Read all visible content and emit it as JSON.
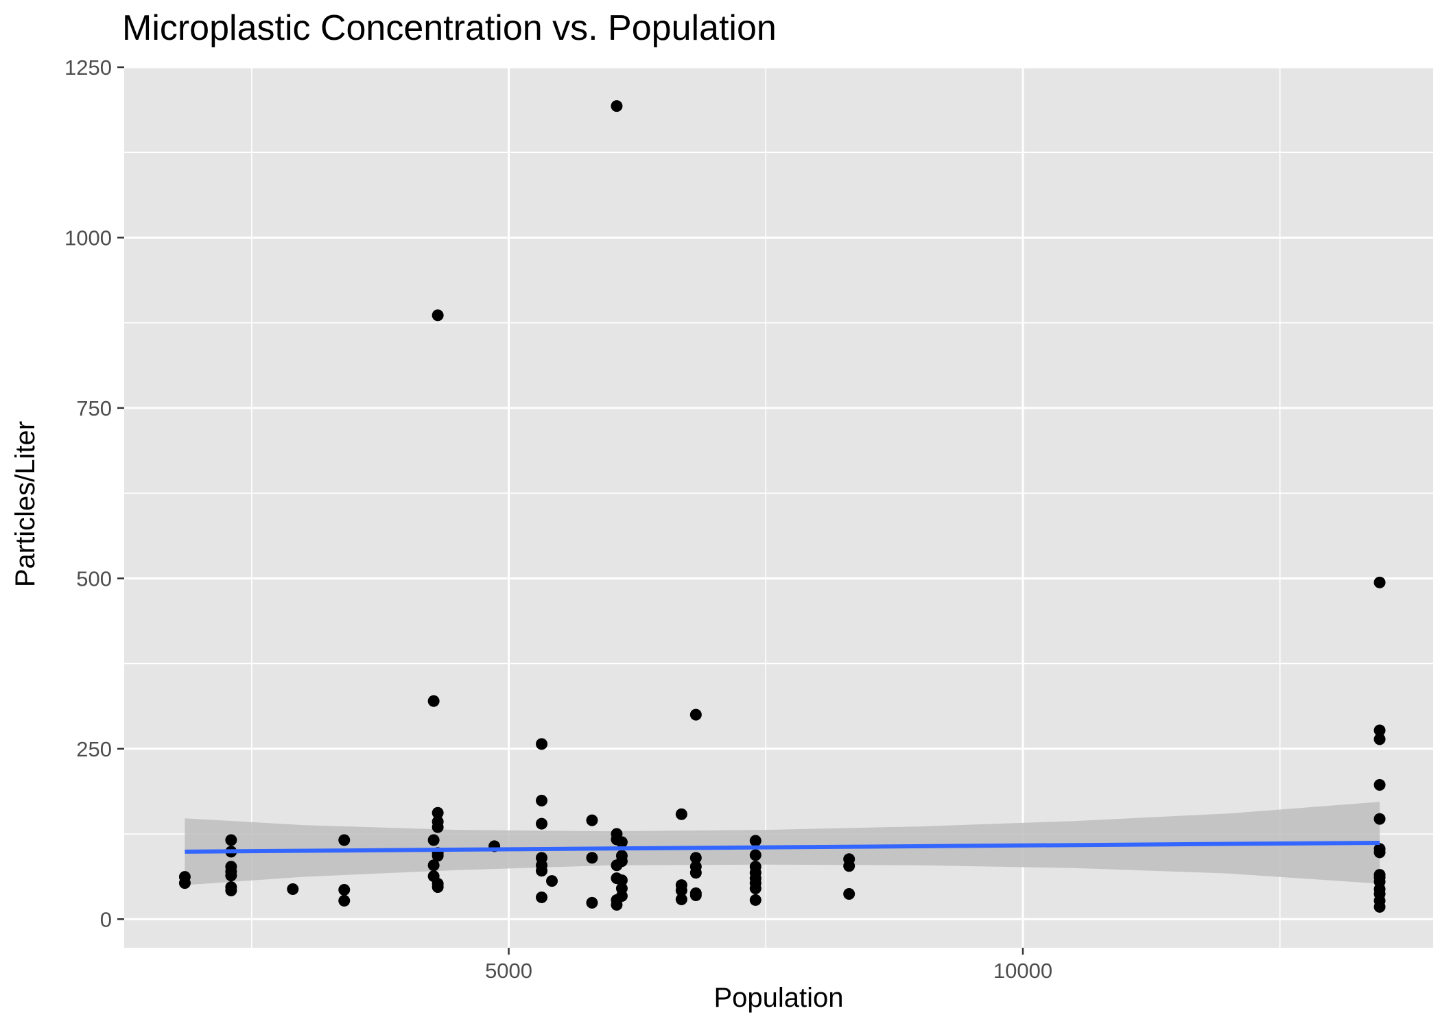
{
  "chart_data": {
    "type": "scatter",
    "title": "Microplastic Concentration vs. Population",
    "xlabel": "Population",
    "ylabel": "Particles/Liter",
    "xlim": [
      1260,
      13990
    ],
    "ylim": [
      -42,
      1250
    ],
    "x_ticks": [
      5000,
      10000
    ],
    "x_tick_labels": [
      "5000",
      "10000"
    ],
    "x_minor_ticks": [
      2500,
      7500,
      12500
    ],
    "y_ticks": [
      0,
      250,
      500,
      750,
      1000,
      1250
    ],
    "y_tick_labels": [
      "0",
      "250",
      "500",
      "750",
      "1000",
      "1250"
    ],
    "y_minor_ticks": [
      125,
      375,
      625,
      875,
      1125
    ],
    "grid": true,
    "background": "#e5e5e5",
    "point_color": "#000000",
    "trend_color": "#3366ff",
    "band_color": "#bebebe",
    "points": [
      {
        "x": 1850,
        "y": 62
      },
      {
        "x": 1850,
        "y": 53
      },
      {
        "x": 2300,
        "y": 116
      },
      {
        "x": 2300,
        "y": 99
      },
      {
        "x": 2300,
        "y": 77
      },
      {
        "x": 2300,
        "y": 70
      },
      {
        "x": 2300,
        "y": 64
      },
      {
        "x": 2300,
        "y": 47
      },
      {
        "x": 2300,
        "y": 42
      },
      {
        "x": 2900,
        "y": 44
      },
      {
        "x": 3400,
        "y": 116
      },
      {
        "x": 3400,
        "y": 43
      },
      {
        "x": 3400,
        "y": 27
      },
      {
        "x": 4270,
        "y": 320
      },
      {
        "x": 4270,
        "y": 116
      },
      {
        "x": 4270,
        "y": 79
      },
      {
        "x": 4270,
        "y": 63
      },
      {
        "x": 4310,
        "y": 886
      },
      {
        "x": 4310,
        "y": 156
      },
      {
        "x": 4310,
        "y": 143
      },
      {
        "x": 4310,
        "y": 135
      },
      {
        "x": 4310,
        "y": 97
      },
      {
        "x": 4310,
        "y": 93
      },
      {
        "x": 4310,
        "y": 52
      },
      {
        "x": 4310,
        "y": 47
      },
      {
        "x": 4860,
        "y": 107
      },
      {
        "x": 5320,
        "y": 257
      },
      {
        "x": 5320,
        "y": 174
      },
      {
        "x": 5320,
        "y": 140
      },
      {
        "x": 5320,
        "y": 90
      },
      {
        "x": 5320,
        "y": 79
      },
      {
        "x": 5320,
        "y": 71
      },
      {
        "x": 5320,
        "y": 32
      },
      {
        "x": 5420,
        "y": 56
      },
      {
        "x": 5810,
        "y": 145
      },
      {
        "x": 5810,
        "y": 90
      },
      {
        "x": 5810,
        "y": 24
      },
      {
        "x": 6050,
        "y": 1193
      },
      {
        "x": 6050,
        "y": 125
      },
      {
        "x": 6050,
        "y": 117
      },
      {
        "x": 6050,
        "y": 79
      },
      {
        "x": 6050,
        "y": 60
      },
      {
        "x": 6050,
        "y": 28
      },
      {
        "x": 6050,
        "y": 21
      },
      {
        "x": 6100,
        "y": 113
      },
      {
        "x": 6100,
        "y": 93
      },
      {
        "x": 6100,
        "y": 85
      },
      {
        "x": 6100,
        "y": 57
      },
      {
        "x": 6100,
        "y": 45
      },
      {
        "x": 6100,
        "y": 34
      },
      {
        "x": 6680,
        "y": 154
      },
      {
        "x": 6680,
        "y": 50
      },
      {
        "x": 6680,
        "y": 42
      },
      {
        "x": 6680,
        "y": 29
      },
      {
        "x": 6820,
        "y": 300
      },
      {
        "x": 6820,
        "y": 90
      },
      {
        "x": 6820,
        "y": 77
      },
      {
        "x": 6820,
        "y": 68
      },
      {
        "x": 6820,
        "y": 38
      },
      {
        "x": 6820,
        "y": 35
      },
      {
        "x": 7400,
        "y": 115
      },
      {
        "x": 7400,
        "y": 94
      },
      {
        "x": 7400,
        "y": 77
      },
      {
        "x": 7400,
        "y": 68
      },
      {
        "x": 7400,
        "y": 60
      },
      {
        "x": 7400,
        "y": 53
      },
      {
        "x": 7400,
        "y": 45
      },
      {
        "x": 7400,
        "y": 28
      },
      {
        "x": 8310,
        "y": 88
      },
      {
        "x": 8310,
        "y": 78
      },
      {
        "x": 8310,
        "y": 37
      },
      {
        "x": 13470,
        "y": 494
      },
      {
        "x": 13470,
        "y": 277
      },
      {
        "x": 13470,
        "y": 264
      },
      {
        "x": 13470,
        "y": 197
      },
      {
        "x": 13470,
        "y": 147
      },
      {
        "x": 13470,
        "y": 103
      },
      {
        "x": 13470,
        "y": 98
      },
      {
        "x": 13470,
        "y": 65
      },
      {
        "x": 13470,
        "y": 61
      },
      {
        "x": 13470,
        "y": 55
      },
      {
        "x": 13470,
        "y": 44
      },
      {
        "x": 13470,
        "y": 37
      },
      {
        "x": 13470,
        "y": 27
      },
      {
        "x": 13470,
        "y": 18
      }
    ],
    "trend_line": {
      "x": [
        1850,
        13470
      ],
      "y": [
        99,
        112
      ]
    },
    "confidence_band": {
      "x": [
        1850,
        3000,
        4500,
        6000,
        7500,
        9000,
        10500,
        12000,
        13470
      ],
      "upper": [
        148,
        138,
        131,
        129,
        131,
        136,
        144,
        155,
        172
      ],
      "lower": [
        50,
        62,
        72,
        79,
        80,
        79,
        75,
        67,
        52
      ]
    }
  }
}
